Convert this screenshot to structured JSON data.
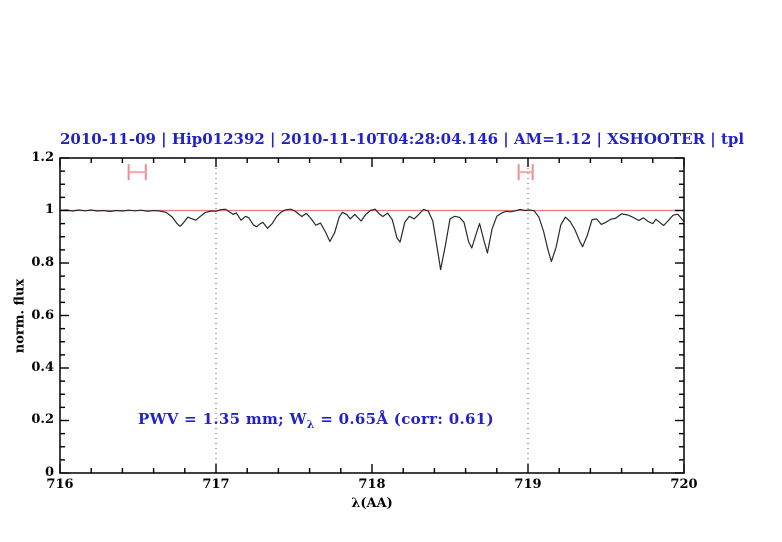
{
  "title": "2010-11-09 | Hip012392 | 2010-11-10T04:28:04.146 | AM=1.12 | XSHOOTER | tpl",
  "annotation": {
    "pre": "PWV  =  1.35  mm; W",
    "sub": "λ",
    "post": "  =  0.65Å  (corr: 0.61)"
  },
  "colors": {
    "title_text": "#2222cc",
    "annotation_text": "#2222cc",
    "spectrum_line": "#2a2a2a",
    "continuum_line": "#f07878",
    "marker": "#ef8d8d",
    "marker_bar": "#f5a6a6",
    "dotted_line": "#555555",
    "axis": "#000000",
    "background": "#ffffff"
  },
  "chart_data": {
    "type": "line",
    "title": "2010-11-09 | Hip012392 | 2010-11-10T04:28:04.146 | AM=1.12 | XSHOOTER | tpl",
    "xlabel": "λ(AA)",
    "ylabel": "norm. flux",
    "xlim": [
      716,
      720
    ],
    "ylim": [
      0,
      1.2
    ],
    "xticks": [
      716,
      717,
      718,
      719,
      720
    ],
    "xtick_labels": [
      "716",
      "717",
      "718",
      "719",
      "720"
    ],
    "x_minor_step": 0.2,
    "x_major_step": 1.0,
    "yticks": [
      0,
      0.2,
      0.4,
      0.6,
      0.8,
      1.0,
      1.2
    ],
    "ytick_labels": [
      "0",
      "0.2",
      "0.4",
      "0.6",
      "0.8",
      "1",
      "1.2"
    ],
    "y_minor_step": 0.05,
    "y_major_step": 0.2,
    "grid": "off",
    "legend": "none",
    "dotted_vlines": [
      717,
      719
    ],
    "continuum_y": 1.0,
    "range_markers": [
      {
        "x_start": 716.44,
        "x_end": 716.55,
        "y": 1.146
      },
      {
        "x_start": 718.94,
        "x_end": 719.03,
        "y": 1.146
      }
    ],
    "series": [
      {
        "name": "telluric spectrum",
        "points": [
          [
            716.0,
            1.0
          ],
          [
            716.04,
            1.002
          ],
          [
            716.08,
            0.998
          ],
          [
            716.12,
            1.002
          ],
          [
            716.16,
            0.999
          ],
          [
            716.2,
            1.002
          ],
          [
            716.24,
            0.998
          ],
          [
            716.28,
            1.0
          ],
          [
            716.32,
            0.996
          ],
          [
            716.36,
            1.0
          ],
          [
            716.4,
            0.998
          ],
          [
            716.44,
            1.001
          ],
          [
            716.48,
            0.999
          ],
          [
            716.52,
            1.001
          ],
          [
            716.56,
            0.997
          ],
          [
            716.6,
            1.0
          ],
          [
            716.64,
            0.998
          ],
          [
            716.68,
            0.993
          ],
          [
            716.72,
            0.975
          ],
          [
            716.75,
            0.95
          ],
          [
            716.77,
            0.94
          ],
          [
            716.79,
            0.952
          ],
          [
            716.82,
            0.975
          ],
          [
            716.84,
            0.97
          ],
          [
            716.87,
            0.963
          ],
          [
            716.9,
            0.978
          ],
          [
            716.93,
            0.992
          ],
          [
            716.97,
            0.998
          ],
          [
            717.0,
            0.997
          ],
          [
            717.03,
            1.003
          ],
          [
            717.06,
            1.005
          ],
          [
            717.09,
            0.993
          ],
          [
            717.11,
            0.985
          ],
          [
            717.13,
            0.991
          ],
          [
            717.16,
            0.963
          ],
          [
            717.19,
            0.978
          ],
          [
            717.21,
            0.972
          ],
          [
            717.24,
            0.945
          ],
          [
            717.26,
            0.938
          ],
          [
            717.28,
            0.948
          ],
          [
            717.3,
            0.955
          ],
          [
            717.33,
            0.932
          ],
          [
            717.36,
            0.95
          ],
          [
            717.39,
            0.978
          ],
          [
            717.42,
            0.995
          ],
          [
            717.45,
            1.003
          ],
          [
            717.48,
            1.005
          ],
          [
            717.51,
            0.996
          ],
          [
            717.55,
            0.977
          ],
          [
            717.58,
            0.989
          ],
          [
            717.61,
            0.968
          ],
          [
            717.64,
            0.944
          ],
          [
            717.67,
            0.952
          ],
          [
            717.7,
            0.92
          ],
          [
            717.73,
            0.882
          ],
          [
            717.76,
            0.915
          ],
          [
            717.79,
            0.975
          ],
          [
            717.81,
            0.993
          ],
          [
            717.84,
            0.984
          ],
          [
            717.86,
            0.968
          ],
          [
            717.89,
            0.985
          ],
          [
            717.93,
            0.96
          ],
          [
            717.96,
            0.985
          ],
          [
            717.99,
            1.0
          ],
          [
            718.02,
            1.005
          ],
          [
            718.05,
            0.985
          ],
          [
            718.07,
            0.977
          ],
          [
            718.1,
            0.99
          ],
          [
            718.13,
            0.965
          ],
          [
            718.16,
            0.895
          ],
          [
            718.18,
            0.88
          ],
          [
            718.21,
            0.955
          ],
          [
            718.24,
            0.978
          ],
          [
            718.27,
            0.968
          ],
          [
            718.3,
            0.985
          ],
          [
            718.33,
            1.004
          ],
          [
            718.36,
            0.998
          ],
          [
            718.39,
            0.96
          ],
          [
            718.42,
            0.85
          ],
          [
            718.44,
            0.775
          ],
          [
            718.47,
            0.865
          ],
          [
            718.5,
            0.968
          ],
          [
            718.53,
            0.978
          ],
          [
            718.56,
            0.974
          ],
          [
            718.59,
            0.955
          ],
          [
            718.62,
            0.88
          ],
          [
            718.64,
            0.857
          ],
          [
            718.67,
            0.915
          ],
          [
            718.69,
            0.95
          ],
          [
            718.72,
            0.88
          ],
          [
            718.74,
            0.838
          ],
          [
            718.77,
            0.93
          ],
          [
            718.8,
            0.978
          ],
          [
            718.83,
            0.99
          ],
          [
            718.86,
            0.997
          ],
          [
            718.89,
            0.995
          ],
          [
            718.92,
            0.999
          ],
          [
            718.95,
            1.004
          ],
          [
            718.98,
            1.0
          ],
          [
            719.01,
            1.002
          ],
          [
            719.04,
            0.999
          ],
          [
            719.07,
            0.975
          ],
          [
            719.1,
            0.92
          ],
          [
            719.13,
            0.845
          ],
          [
            719.15,
            0.806
          ],
          [
            719.18,
            0.86
          ],
          [
            719.21,
            0.945
          ],
          [
            719.24,
            0.975
          ],
          [
            719.27,
            0.958
          ],
          [
            719.3,
            0.928
          ],
          [
            719.33,
            0.885
          ],
          [
            719.35,
            0.862
          ],
          [
            719.38,
            0.905
          ],
          [
            719.41,
            0.965
          ],
          [
            719.44,
            0.968
          ],
          [
            719.47,
            0.947
          ],
          [
            719.5,
            0.955
          ],
          [
            719.53,
            0.967
          ],
          [
            719.56,
            0.97
          ],
          [
            719.6,
            0.987
          ],
          [
            719.64,
            0.983
          ],
          [
            719.67,
            0.975
          ],
          [
            719.71,
            0.962
          ],
          [
            719.74,
            0.972
          ],
          [
            719.77,
            0.958
          ],
          [
            719.8,
            0.95
          ],
          [
            719.82,
            0.967
          ],
          [
            719.85,
            0.952
          ],
          [
            719.87,
            0.943
          ],
          [
            719.9,
            0.962
          ],
          [
            719.93,
            0.982
          ],
          [
            719.96,
            0.986
          ],
          [
            720.0,
            0.958
          ]
        ]
      }
    ],
    "annotation_text": "PWV = 1.35 mm; Wλ = 0.65Å (corr: 0.61)"
  }
}
